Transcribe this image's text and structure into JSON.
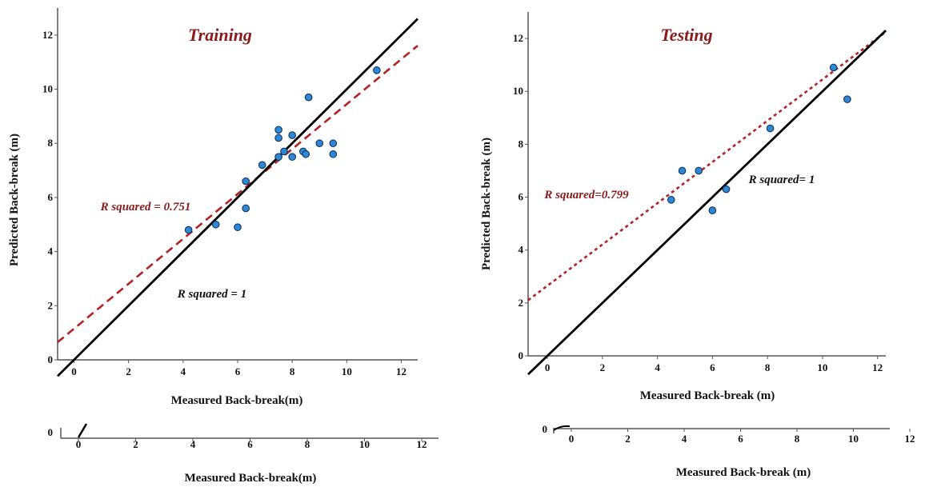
{
  "chart_data": [
    {
      "type": "scatter",
      "title": "Training",
      "xlabel": "Measured Back-break(m)",
      "ylabel": "Predicted Back-break (m)",
      "xlim": [
        -0.6,
        12.6
      ],
      "ylim": [
        0,
        13
      ],
      "xticks": [
        "0",
        "2",
        "4",
        "6",
        "8",
        "10",
        "12"
      ],
      "yticks": [
        "0",
        "2",
        "4",
        "6",
        "8",
        "10",
        "12"
      ],
      "grid": false,
      "points": [
        {
          "x": 4.2,
          "y": 4.8
        },
        {
          "x": 5.2,
          "y": 5.0
        },
        {
          "x": 6.0,
          "y": 4.9
        },
        {
          "x": 6.3,
          "y": 5.6
        },
        {
          "x": 6.3,
          "y": 6.6
        },
        {
          "x": 6.9,
          "y": 7.2
        },
        {
          "x": 7.5,
          "y": 8.5
        },
        {
          "x": 7.5,
          "y": 8.2
        },
        {
          "x": 7.5,
          "y": 7.5
        },
        {
          "x": 7.7,
          "y": 7.7
        },
        {
          "x": 8.0,
          "y": 8.3
        },
        {
          "x": 8.0,
          "y": 7.5
        },
        {
          "x": 8.4,
          "y": 7.7
        },
        {
          "x": 8.5,
          "y": 7.6
        },
        {
          "x": 8.6,
          "y": 9.7
        },
        {
          "x": 9.0,
          "y": 8.0
        },
        {
          "x": 9.5,
          "y": 8.0
        },
        {
          "x": 9.5,
          "y": 7.6
        },
        {
          "x": 11.1,
          "y": 10.7
        }
      ],
      "fit_lines": [
        {
          "label": "R squared = 0.751",
          "slope": 0.83,
          "intercept": 1.15,
          "style": "dashed",
          "color": "#b22222"
        },
        {
          "label": "R squared = 1",
          "slope": 1.0,
          "intercept": 0.0,
          "style": "solid",
          "color": "#000000"
        }
      ]
    },
    {
      "type": "scatter",
      "title": "Testing",
      "xlabel": "Measured Back-break (m)",
      "ylabel": "Predicted Back-break (m)",
      "xlim": [
        -0.7,
        12.3
      ],
      "ylim": [
        0,
        13
      ],
      "xticks": [
        "0",
        "2",
        "4",
        "6",
        "8",
        "10",
        "12"
      ],
      "yticks": [
        "0",
        "2",
        "4",
        "6",
        "8",
        "10",
        "12"
      ],
      "grid": false,
      "points": [
        {
          "x": 4.5,
          "y": 5.9
        },
        {
          "x": 4.9,
          "y": 7.0
        },
        {
          "x": 5.5,
          "y": 7.0
        },
        {
          "x": 6.0,
          "y": 5.5
        },
        {
          "x": 6.5,
          "y": 6.3
        },
        {
          "x": 8.1,
          "y": 8.6
        },
        {
          "x": 10.4,
          "y": 10.9
        },
        {
          "x": 10.9,
          "y": 9.7
        }
      ],
      "fit_lines": [
        {
          "label": "R squared=0.799",
          "slope": 0.78,
          "intercept": 2.65,
          "style": "dotted",
          "color": "#b22222"
        },
        {
          "label": "R squared= 1",
          "slope": 1.0,
          "intercept": 0.0,
          "style": "solid",
          "color": "#000000"
        }
      ]
    }
  ],
  "duplicate_axes": [
    {
      "ytick": "0",
      "xticks": [
        "0",
        "2",
        "4",
        "6",
        "8",
        "10",
        "12"
      ],
      "xlabel": "Measured Back-break(m)"
    },
    {
      "ytick": "0",
      "xticks": [
        "0",
        "2",
        "4",
        "6",
        "8",
        "10",
        "12"
      ],
      "xlabel": "Measured Back-break (m)"
    }
  ],
  "colors": {
    "point": "#2e86d6",
    "point_stroke": "#0a2a50",
    "fit": "#b22222",
    "axis": "#555555"
  }
}
